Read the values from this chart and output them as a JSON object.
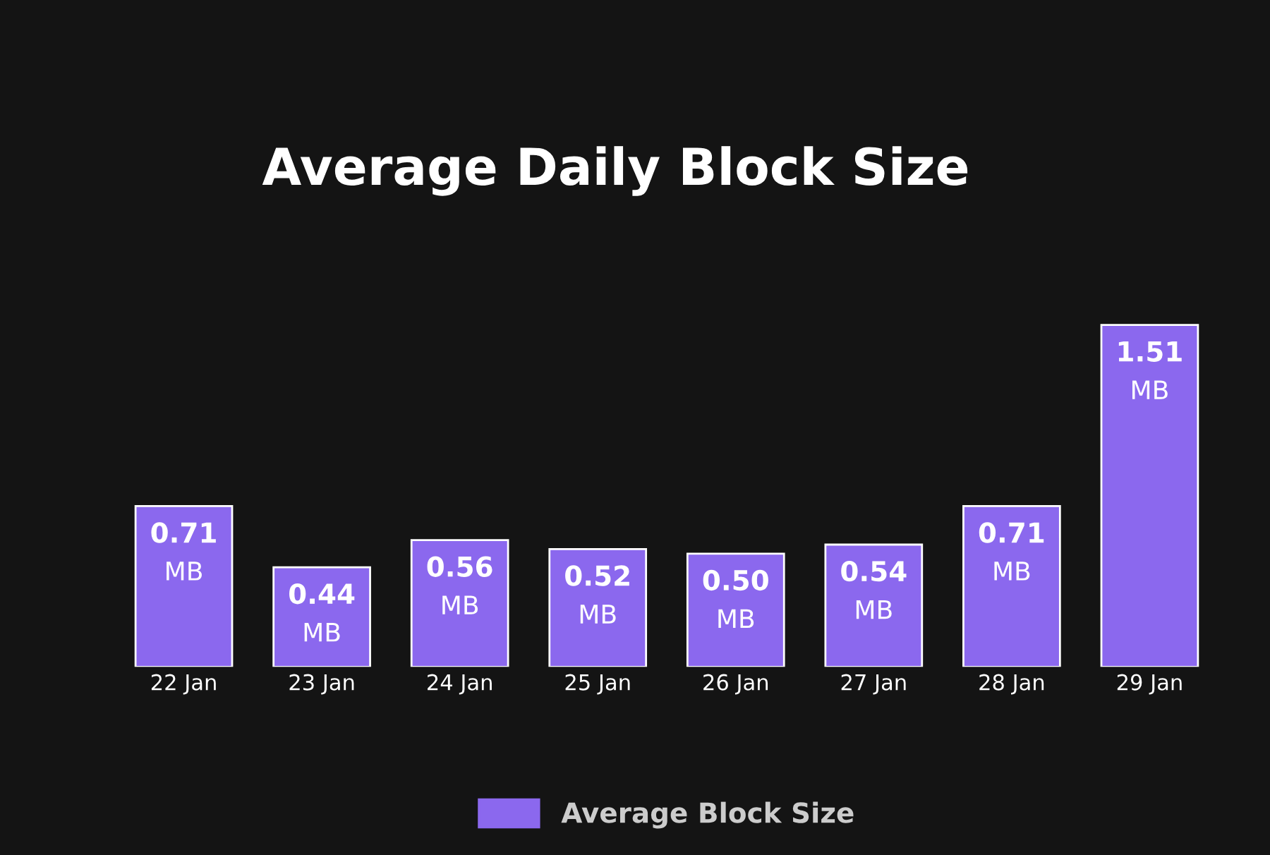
{
  "chart_data": {
    "type": "bar",
    "title": "Average Daily Block Size",
    "categories": [
      "22 Jan",
      "23 Jan",
      "24 Jan",
      "25 Jan",
      "26 Jan",
      "27 Jan",
      "28 Jan",
      "29 Jan"
    ],
    "series": [
      {
        "name": "Average Block Size",
        "color": "#8b68ee",
        "values": [
          0.71,
          0.44,
          0.56,
          0.52,
          0.5,
          0.54,
          0.71,
          1.51
        ],
        "value_labels": [
          "0.71 MB",
          "0.44 MB",
          "0.56 MB",
          "0.52 MB",
          "0.50 MB",
          "0.54 MB",
          "0.71 MB",
          "1.51 MB"
        ]
      }
    ],
    "tick_labels": "x",
    "grid": false,
    "legend": "bottom"
  }
}
